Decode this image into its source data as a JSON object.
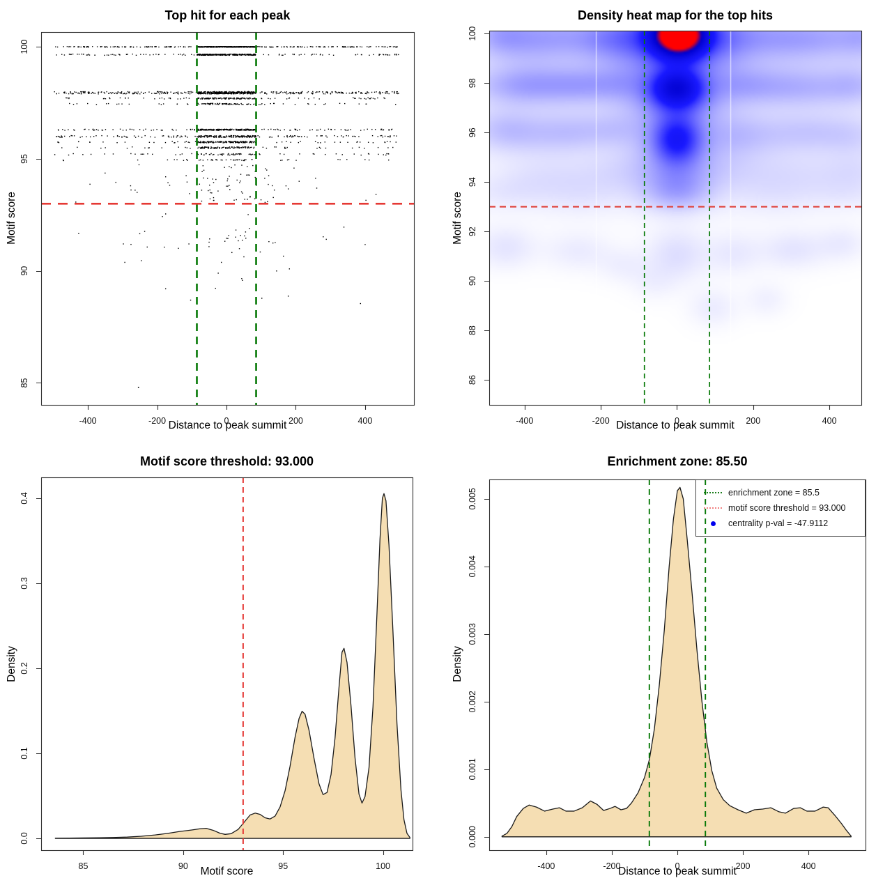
{
  "figure": {
    "background": "#ffffff",
    "description": "2x2 motif centrality analysis plots"
  },
  "stats": {
    "motif_score_threshold": "93.000",
    "enrichment_zone": "85.5",
    "centrality_p_val": "-47.9112"
  },
  "chart_data": [
    {
      "type": "scatter",
      "title": "Top hit for each peak",
      "xlabel": "Distance to peak summit",
      "ylabel": "Motif score",
      "box": {
        "l": 59,
        "t": 46,
        "r": 594,
        "b": 581
      },
      "xlim": [
        -535,
        541
      ],
      "ylim": [
        84.02,
        100.66
      ],
      "xticks": [
        -400,
        -200,
        0,
        200,
        400
      ],
      "yticks": [
        85,
        90,
        95,
        100
      ],
      "point_color": "#000000",
      "seed": 42,
      "zone_inner": [
        -85,
        85
      ],
      "bands": [
        [
          100.0,
          200,
          420,
          0.5
        ],
        [
          99.65,
          95,
          280,
          0.9
        ],
        [
          97.95,
          270,
          340,
          1.7
        ],
        [
          97.7,
          55,
          120,
          0.9
        ],
        [
          97.45,
          38,
          70,
          0.9
        ],
        [
          96.3,
          95,
          190,
          0.9
        ],
        [
          96.0,
          115,
          160,
          1.3
        ],
        [
          95.75,
          45,
          140,
          1.1
        ],
        [
          95.5,
          32,
          100,
          1.1
        ],
        [
          95.2,
          38,
          50,
          1.1
        ],
        [
          94.95,
          20,
          28,
          0.9
        ]
      ],
      "clouds": [
        {
          "n": 42,
          "x": [
            -85,
            85
          ],
          "y": [
            93.05,
            94.75
          ],
          "tri": false
        },
        {
          "n": 48,
          "x": [
            -497,
            497
          ],
          "y": [
            93.05,
            94.75
          ],
          "tri": true
        },
        {
          "n": 26,
          "x": [
            -480,
            480
          ],
          "y": [
            90.8,
            92.6
          ],
          "tri": true
        },
        {
          "n": 12,
          "x": [
            -65,
            65
          ],
          "y": [
            90.95,
            91.6
          ],
          "tri": false
        },
        {
          "n": 11,
          "x": [
            -430,
            430
          ],
          "y": [
            89.5,
            90.7
          ],
          "tri": true
        },
        {
          "n": 6,
          "x": [
            -390,
            390
          ],
          "y": [
            88.3,
            89.4
          ],
          "tri": true
        }
      ],
      "outliers": [
        [
          -254,
          84.8
        ]
      ],
      "vlines": {
        "x": [
          -85.5,
          85.5
        ],
        "color": "#067806",
        "dash": [
          11,
          8
        ],
        "width": 2.6
      },
      "hlines": {
        "y": [
          93
        ],
        "color": "#E53935",
        "dash": [
          14,
          10
        ],
        "width": 2.6
      }
    },
    {
      "type": "heatmap",
      "title": "Density heat map for the top hits",
      "xlabel": "Distance to peak summit",
      "ylabel": "Motif score",
      "box": {
        "l": 62,
        "t": 44,
        "r": 596,
        "b": 581
      },
      "xlim": [
        -493,
        484
      ],
      "ylim": [
        84.99,
        100.12
      ],
      "xticks": [
        -400,
        -200,
        0,
        200,
        400
      ],
      "yticks": [
        86,
        88,
        90,
        92,
        94,
        96,
        98,
        100
      ],
      "white_streaks": [
        -212,
        141
      ],
      "blobs": [
        [
          0,
          99.3,
          520,
          1.6,
          0.055
        ],
        [
          0,
          96.8,
          520,
          2.4,
          0.04
        ],
        [
          0,
          99.95,
          520,
          0.8,
          0.05
        ],
        [
          5,
          99.98,
          48,
          0.6,
          1.28
        ],
        [
          0,
          99.75,
          105,
          0.95,
          0.26
        ],
        [
          -125,
          99.9,
          55,
          0.65,
          0.1
        ],
        [
          135,
          99.9,
          55,
          0.65,
          0.09
        ],
        [
          -465,
          99.95,
          50,
          0.6,
          0.12
        ],
        [
          -390,
          99.8,
          60,
          0.7,
          0.09
        ],
        [
          -300,
          99.85,
          65,
          0.6,
          0.085
        ],
        [
          -195,
          99.8,
          55,
          0.6,
          0.09
        ],
        [
          240,
          99.85,
          65,
          0.6,
          0.08
        ],
        [
          325,
          99.8,
          60,
          0.6,
          0.075
        ],
        [
          425,
          99.85,
          65,
          0.6,
          0.09
        ],
        [
          495,
          99.9,
          40,
          0.6,
          0.08
        ],
        [
          0,
          97.82,
          46,
          0.52,
          0.52
        ],
        [
          0,
          97.75,
          95,
          0.9,
          0.16
        ],
        [
          0,
          97.3,
          60,
          0.5,
          0.09
        ],
        [
          -435,
          97.9,
          75,
          0.55,
          0.12
        ],
        [
          -330,
          97.9,
          75,
          0.55,
          0.11
        ],
        [
          -240,
          97.9,
          60,
          0.5,
          0.09
        ],
        [
          -150,
          97.95,
          55,
          0.5,
          0.085
        ],
        [
          165,
          97.9,
          60,
          0.5,
          0.085
        ],
        [
          260,
          97.85,
          70,
          0.55,
          0.09
        ],
        [
          365,
          97.8,
          70,
          0.55,
          0.085
        ],
        [
          470,
          97.9,
          55,
          0.55,
          0.1
        ],
        [
          0,
          95.72,
          44,
          0.68,
          0.4
        ],
        [
          0,
          95.8,
          92,
          1.05,
          0.13
        ],
        [
          -460,
          96.1,
          60,
          0.6,
          0.1
        ],
        [
          -360,
          95.95,
          70,
          0.6,
          0.08
        ],
        [
          -265,
          96.0,
          60,
          0.55,
          0.075
        ],
        [
          -165,
          96.1,
          55,
          0.5,
          0.065
        ],
        [
          155,
          95.85,
          60,
          0.6,
          0.075
        ],
        [
          255,
          95.9,
          70,
          0.6,
          0.065
        ],
        [
          355,
          96.0,
          60,
          0.55,
          0.065
        ],
        [
          460,
          95.85,
          60,
          0.6,
          0.08
        ],
        [
          0,
          94.45,
          85,
          0.7,
          0.085
        ],
        [
          -160,
          94.35,
          85,
          0.6,
          0.045
        ],
        [
          160,
          94.45,
          85,
          0.6,
          0.045
        ],
        [
          -355,
          94.25,
          85,
          0.6,
          0.045
        ],
        [
          335,
          94.35,
          90,
          0.6,
          0.045
        ],
        [
          475,
          94.45,
          60,
          0.5,
          0.045
        ],
        [
          0,
          93.85,
          60,
          0.55,
          0.11
        ],
        [
          0,
          93.3,
          70,
          0.5,
          0.08
        ],
        [
          -255,
          93.45,
          90,
          0.6,
          0.045
        ],
        [
          255,
          93.45,
          90,
          0.6,
          0.045
        ],
        [
          -455,
          93.55,
          70,
          0.5,
          0.04
        ],
        [
          455,
          93.55,
          70,
          0.5,
          0.04
        ],
        [
          0,
          91.05,
          55,
          0.75,
          0.075
        ],
        [
          -450,
          91.35,
          55,
          0.6,
          0.06
        ],
        [
          -260,
          91.2,
          60,
          0.55,
          0.045
        ],
        [
          150,
          91.1,
          50,
          0.6,
          0.05
        ],
        [
          305,
          91.25,
          60,
          0.55,
          0.06
        ],
        [
          435,
          91.5,
          45,
          0.5,
          0.045
        ],
        [
          -140,
          90.6,
          45,
          0.5,
          0.035
        ],
        [
          95,
          88.9,
          45,
          0.55,
          0.045
        ],
        [
          235,
          89.25,
          40,
          0.5,
          0.035
        ],
        [
          -60,
          89.9,
          40,
          0.5,
          0.028
        ]
      ],
      "vlines": {
        "x": [
          -85.5,
          85.5
        ],
        "color": "#067806",
        "dash": [
          7,
          5
        ],
        "width": 1.7
      },
      "hlines": {
        "y": [
          93
        ],
        "color": "#E0443E",
        "dash": [
          9,
          6
        ],
        "width": 2.1
      }
    },
    {
      "type": "density",
      "title": "Motif score threshold: 93.000",
      "xlabel": "Motif score",
      "ylabel": "Density",
      "box": {
        "l": 59,
        "t": 45,
        "r": 592,
        "b": 580
      },
      "xlim": [
        82.89,
        101.48
      ],
      "ylim": [
        -0.0139,
        0.4246
      ],
      "xticks": [
        85,
        90,
        95,
        100
      ],
      "yticks": [
        0,
        0.1,
        0.2,
        0.3,
        0.4
      ],
      "ytick_labels": [
        "0.0",
        "0.1",
        "0.2",
        "0.3",
        "0.4"
      ],
      "fill": "#F5DEB3",
      "curve": [
        [
          83.6,
          0.0002
        ],
        [
          84.3,
          0.0003
        ],
        [
          85.0,
          0.0005
        ],
        [
          85.8,
          0.0007
        ],
        [
          86.5,
          0.001
        ],
        [
          87.2,
          0.0015
        ],
        [
          87.9,
          0.0025
        ],
        [
          88.6,
          0.004
        ],
        [
          89.2,
          0.0058
        ],
        [
          89.8,
          0.008
        ],
        [
          90.4,
          0.0098
        ],
        [
          90.85,
          0.0113
        ],
        [
          91.15,
          0.0118
        ],
        [
          91.5,
          0.0095
        ],
        [
          91.85,
          0.006
        ],
        [
          92.1,
          0.0047
        ],
        [
          92.4,
          0.0055
        ],
        [
          92.75,
          0.0105
        ],
        [
          93.05,
          0.019
        ],
        [
          93.35,
          0.0275
        ],
        [
          93.6,
          0.0297
        ],
        [
          93.85,
          0.0282
        ],
        [
          94.1,
          0.0242
        ],
        [
          94.35,
          0.0228
        ],
        [
          94.6,
          0.0262
        ],
        [
          94.85,
          0.037
        ],
        [
          95.1,
          0.056
        ],
        [
          95.35,
          0.085
        ],
        [
          95.6,
          0.119
        ],
        [
          95.8,
          0.141
        ],
        [
          95.95,
          0.1495
        ],
        [
          96.1,
          0.146
        ],
        [
          96.3,
          0.127
        ],
        [
          96.55,
          0.094
        ],
        [
          96.8,
          0.064
        ],
        [
          97.0,
          0.0515
        ],
        [
          97.2,
          0.054
        ],
        [
          97.4,
          0.075
        ],
        [
          97.6,
          0.118
        ],
        [
          97.8,
          0.178
        ],
        [
          97.95,
          0.219
        ],
        [
          98.05,
          0.2235
        ],
        [
          98.2,
          0.207
        ],
        [
          98.4,
          0.156
        ],
        [
          98.6,
          0.095
        ],
        [
          98.8,
          0.052
        ],
        [
          98.95,
          0.0415
        ],
        [
          99.1,
          0.049
        ],
        [
          99.3,
          0.083
        ],
        [
          99.5,
          0.155
        ],
        [
          99.7,
          0.265
        ],
        [
          99.85,
          0.352
        ],
        [
          99.97,
          0.4
        ],
        [
          100.05,
          0.4055
        ],
        [
          100.15,
          0.397
        ],
        [
          100.3,
          0.345
        ],
        [
          100.5,
          0.243
        ],
        [
          100.7,
          0.135
        ],
        [
          100.9,
          0.057
        ],
        [
          101.05,
          0.022
        ],
        [
          101.2,
          0.006
        ],
        [
          101.35,
          0.001
        ]
      ],
      "vlines": {
        "x": [
          93
        ],
        "color": "#E53935",
        "dash": [
          8,
          6
        ],
        "width": 2
      }
    },
    {
      "type": "density",
      "title": "Enrichment zone: 85.50",
      "xlabel": "Distance to peak summit",
      "ylabel": "Density",
      "box": {
        "l": 62,
        "t": 48,
        "r": 602,
        "b": 580
      },
      "xlim": [
        -574,
        574
      ],
      "ylim": [
        -0.000198,
        0.005287
      ],
      "xticks": [
        -400,
        -200,
        0,
        200,
        400
      ],
      "yticks": [
        0,
        0.001,
        0.002,
        0.003,
        0.004,
        0.005
      ],
      "ytick_labels": [
        "0.000",
        "0.001",
        "0.002",
        "0.003",
        "0.004",
        "0.005"
      ],
      "fill": "#F5DEB3",
      "curve": [
        [
          -535,
          1e-05
        ],
        [
          -520,
          5e-05
        ],
        [
          -505,
          0.00015
        ],
        [
          -490,
          0.0003
        ],
        [
          -470,
          0.00042
        ],
        [
          -452,
          0.00047
        ],
        [
          -430,
          0.00044
        ],
        [
          -405,
          0.00038
        ],
        [
          -380,
          0.00041
        ],
        [
          -360,
          0.00043
        ],
        [
          -340,
          0.00038
        ],
        [
          -315,
          0.00038
        ],
        [
          -290,
          0.00043
        ],
        [
          -265,
          0.00053
        ],
        [
          -245,
          0.00048
        ],
        [
          -225,
          0.00039
        ],
        [
          -205,
          0.00042
        ],
        [
          -190,
          0.00045
        ],
        [
          -172,
          0.0004
        ],
        [
          -155,
          0.00042
        ],
        [
          -140,
          0.0005
        ],
        [
          -120,
          0.00065
        ],
        [
          -100,
          0.00088
        ],
        [
          -85,
          0.00115
        ],
        [
          -70,
          0.0016
        ],
        [
          -55,
          0.00225
        ],
        [
          -40,
          0.00305
        ],
        [
          -25,
          0.004
        ],
        [
          -12,
          0.0047
        ],
        [
          0,
          0.00512
        ],
        [
          8,
          0.00517
        ],
        [
          18,
          0.005
        ],
        [
          30,
          0.0044
        ],
        [
          45,
          0.0036
        ],
        [
          60,
          0.00275
        ],
        [
          75,
          0.002
        ],
        [
          90,
          0.0014
        ],
        [
          105,
          0.00098
        ],
        [
          120,
          0.00072
        ],
        [
          140,
          0.00055
        ],
        [
          160,
          0.00046
        ],
        [
          185,
          0.0004
        ],
        [
          210,
          0.00035
        ],
        [
          235,
          0.0004
        ],
        [
          260,
          0.00041
        ],
        [
          285,
          0.00043
        ],
        [
          310,
          0.00037
        ],
        [
          330,
          0.00035
        ],
        [
          355,
          0.00042
        ],
        [
          375,
          0.00043
        ],
        [
          395,
          0.00038
        ],
        [
          420,
          0.00038
        ],
        [
          445,
          0.00044
        ],
        [
          460,
          0.00043
        ],
        [
          480,
          0.00032
        ],
        [
          500,
          0.0002
        ],
        [
          515,
          0.0001
        ],
        [
          530,
          1e-05
        ]
      ],
      "vlines": {
        "x": [
          -85.5,
          85.5
        ],
        "color": "#067806",
        "dash": [
          8,
          6
        ],
        "width": 1.9
      },
      "legend": {
        "entries": [
          {
            "label": "enrichment zone = 85.5",
            "glyph": "dotted-line",
            "color": "#1a7d1a"
          },
          {
            "label": "motif score threshold = 93.000",
            "glyph": "dotted-line",
            "color": "#F08080"
          },
          {
            "label": "centrality p-val = -47.9112",
            "glyph": "dot",
            "color": "#0000EE"
          }
        ]
      }
    }
  ]
}
